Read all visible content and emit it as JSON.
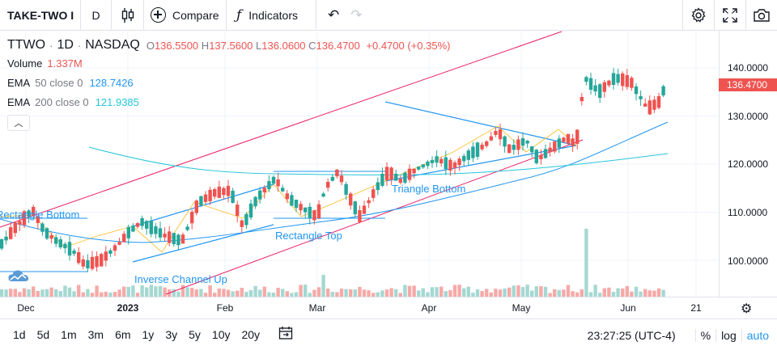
{
  "toolbar": {
    "symbol": "TAKE-TWO I",
    "interval": "D",
    "compare_label": "Compare",
    "indicators_label": "Indicators",
    "icons": [
      "candles-icon",
      "plus-circle-icon",
      "fx-icon",
      "undo-icon",
      "redo-icon",
      "gear-icon",
      "fullscreen-icon",
      "camera-icon"
    ]
  },
  "legend": {
    "ticker": "TTWO",
    "interval": "1D",
    "exchange": "NASDAQ",
    "open_label": "O",
    "open": "136.5500",
    "high_label": "H",
    "high": "137.5600",
    "low_label": "L",
    "low": "136.0600",
    "close_label": "C",
    "close": "136.4700",
    "change": "+0.4700 (+0.35%)",
    "volume_name": "Volume",
    "volume": "1.337M",
    "ema50_name": "EMA",
    "ema50_params": "50 close 0",
    "ema50_value": "128.7426",
    "ema200_name": "EMA",
    "ema200_params": "200 close 0",
    "ema200_value": "121.9385"
  },
  "price_axis": {
    "ticks": [
      "140.0000",
      "130.0000",
      "120.0000",
      "110.0000",
      "100.0000"
    ],
    "last_price": "136.4700"
  },
  "time_axis": {
    "ticks": [
      {
        "label": "Dec",
        "bold": false
      },
      {
        "label": "2023",
        "bold": true
      },
      {
        "label": "Feb",
        "bold": false
      },
      {
        "label": "Mar",
        "bold": false
      },
      {
        "label": "Apr",
        "bold": false
      },
      {
        "label": "May",
        "bold": false
      },
      {
        "label": "Jun",
        "bold": false
      },
      {
        "label": "21",
        "bold": false
      }
    ]
  },
  "drawings": {
    "rectangle_bottom": "Rectangle Bottom",
    "rectangle_top": "Rectangle Top",
    "triangle_bottom": "Triangle Bottom",
    "inverse_channel_up": "Inverse Channel Up"
  },
  "bottom_bar": {
    "ranges": [
      "1d",
      "5d",
      "1m",
      "3m",
      "6m",
      "1y",
      "3y",
      "5y",
      "10y",
      "20y"
    ],
    "clock": "23:27:25 (UTC-4)",
    "percent_label": "%",
    "log_label": "log",
    "auto_label": "auto"
  },
  "colors": {
    "up": "#26a69a",
    "down": "#ef5350",
    "ema50": "#2196f3",
    "ema200": "#26c6da",
    "channel": "#e91e63",
    "pattern": "#2196f3",
    "zigzag": "#fbc02d"
  }
}
